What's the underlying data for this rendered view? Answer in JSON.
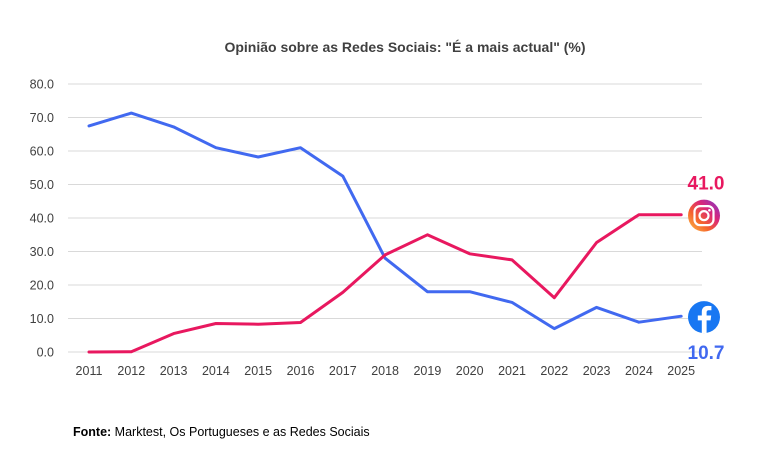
{
  "chart_data": {
    "type": "line",
    "title": "Opinião sobre as Redes Sociais: \"É a mais actual\" (%)",
    "categories": [
      "2011",
      "2012",
      "2013",
      "2014",
      "2015",
      "2016",
      "2017",
      "2018",
      "2019",
      "2020",
      "2021",
      "2022",
      "2023",
      "2024",
      "2025"
    ],
    "ylim": [
      0,
      80
    ],
    "yticks": [
      "0.0",
      "10.0",
      "20.0",
      "30.0",
      "40.0",
      "50.0",
      "60.0",
      "70.0",
      "80.0"
    ],
    "grid": true,
    "series": [
      {
        "name": "Facebook",
        "icon": "facebook-icon",
        "color": "#4169f0",
        "values": [
          67.5,
          71.3,
          67.2,
          61.0,
          58.2,
          61.0,
          52.5,
          28.0,
          18.0,
          18.0,
          14.8,
          7.0,
          13.3,
          8.9,
          10.7
        ],
        "end_label": "10.7"
      },
      {
        "name": "Instagram",
        "icon": "instagram-icon",
        "color": "#e8185f",
        "values": [
          0.0,
          0.1,
          5.5,
          8.5,
          8.3,
          8.8,
          17.8,
          29.0,
          35.0,
          29.3,
          27.5,
          16.2,
          32.7,
          41.0,
          41.0
        ],
        "end_label": "41.0"
      }
    ]
  },
  "source": {
    "label": "Fonte:",
    "text": " Marktest, Os Portugueses e as Redes Sociais"
  }
}
